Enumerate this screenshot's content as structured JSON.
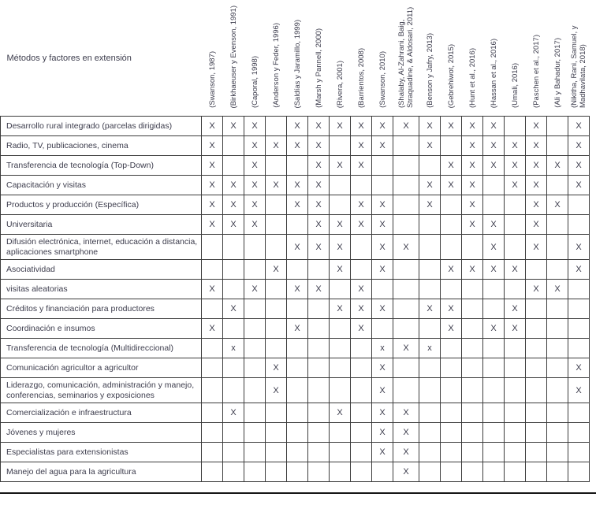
{
  "table": {
    "corner_header": "Métodos y factores en extensión",
    "columns": [
      "(Swanson, 1987)",
      "(Birkhaeuser y Evenson, 1991)",
      "(Caporal, 1998)",
      "(Anderson y Feder, 1996)",
      "(Saldías y Jaramillo, 1999)",
      "(Marsh y Pannell, 2000)",
      "(Rivera, 2001)",
      "(Barrientos, 2008)",
      "(Swanson, 2010)",
      "(Shalaby, Al-Zahrani, Baig, Straquadine, & Aldosari, 2011)",
      "(Benson y Jafry, 2013)",
      "(Gebrehiwot, 2015)",
      "(Hunt et al., 2016)",
      "(Hassan et al., 2016)",
      "(Umali, 2016)",
      "(Paschen et al., 2017)",
      "(Ali y Bahadur, 2017)",
      "(Nikitha, Rani, Samuel, y Madhavilata, 2018)"
    ],
    "rows": [
      {
        "label": "Desarrollo rural integrado (parcelas dirigidas)",
        "cells": [
          "X",
          "X",
          "X",
          "",
          "X",
          "X",
          "X",
          "X",
          "X",
          "X",
          "X",
          "X",
          "X",
          "X",
          "",
          "X",
          "",
          "X"
        ]
      },
      {
        "label": "Radio, TV, publicaciones, cinema",
        "cells": [
          "X",
          "",
          "X",
          "X",
          "X",
          "X",
          "",
          "X",
          "X",
          "",
          "X",
          "",
          "X",
          "X",
          "X",
          "X",
          "",
          "X"
        ]
      },
      {
        "label": "Transferencia de tecnología (Top-Down)",
        "cells": [
          "X",
          "",
          "X",
          "",
          "",
          "X",
          "X",
          "X",
          "",
          "",
          "",
          "X",
          "X",
          "X",
          "X",
          "X",
          "X",
          "X"
        ]
      },
      {
        "label": "Capacitación y visitas",
        "cells": [
          "X",
          "X",
          "X",
          "X",
          "X",
          "X",
          "",
          "",
          "",
          "",
          "X",
          "X",
          "X",
          "",
          "X",
          "X",
          "",
          "X"
        ]
      },
      {
        "label": "Productos y producción (Específica)",
        "cells": [
          "X",
          "X",
          "X",
          "",
          "X",
          "X",
          "",
          "X",
          "X",
          "",
          "X",
          "",
          "X",
          "",
          "",
          "X",
          "X",
          ""
        ]
      },
      {
        "label": "Universitaria",
        "cells": [
          "X",
          "X",
          "X",
          "",
          "",
          "X",
          "X",
          "X",
          "X",
          "",
          "",
          "",
          "X",
          "X",
          "",
          "X",
          "",
          ""
        ]
      },
      {
        "label": "Difusión electrónica, internet, educación a distancia, aplicaciones smartphone",
        "cells": [
          "",
          "",
          "",
          "",
          "X",
          "X",
          "X",
          "",
          "X",
          "X",
          "",
          "",
          "",
          "X",
          "",
          "X",
          "",
          "X"
        ]
      },
      {
        "label": "Asociatividad",
        "cells": [
          "",
          "",
          "",
          "X",
          "",
          "",
          "X",
          "",
          "X",
          "",
          "",
          "X",
          "X",
          "X",
          "X",
          "",
          "",
          "X"
        ]
      },
      {
        "label": "visitas aleatorias",
        "cells": [
          "X",
          "",
          "X",
          "",
          "X",
          "X",
          "",
          "X",
          "",
          "",
          "",
          "",
          "",
          "",
          "",
          "X",
          "X",
          ""
        ]
      },
      {
        "label": "Créditos y financiación para productores",
        "cells": [
          "",
          "X",
          "",
          "",
          "",
          "",
          "X",
          "X",
          "X",
          "",
          "X",
          "X",
          "",
          "",
          "X",
          "",
          "",
          ""
        ]
      },
      {
        "label": "Coordinación e insumos",
        "cells": [
          "X",
          "",
          "",
          "",
          "X",
          "",
          "",
          "X",
          "",
          "",
          "",
          "X",
          "",
          "X",
          "X",
          "",
          "",
          ""
        ]
      },
      {
        "label": "Transferencia de tecnología (Multidireccional)",
        "cells": [
          "",
          "x",
          "",
          "",
          "",
          "",
          "",
          "",
          "x",
          "X",
          "x",
          "",
          "",
          "",
          "",
          "",
          "",
          ""
        ]
      },
      {
        "label": "Comunicación agricultor a agricultor",
        "cells": [
          "",
          "",
          "",
          "X",
          "",
          "",
          "",
          "",
          "X",
          "",
          "",
          "",
          "",
          "",
          "",
          "",
          "",
          "X"
        ]
      },
      {
        "label": "Liderazgo, comunicación, administración y manejo, conferencias, seminarios y exposiciones",
        "cells": [
          "",
          "",
          "",
          "X",
          "",
          "",
          "",
          "",
          "X",
          "",
          "",
          "",
          "",
          "",
          "",
          "",
          "",
          "X"
        ]
      },
      {
        "label": "Comercialización e infraestructura",
        "cells": [
          "",
          "X",
          "",
          "",
          "",
          "",
          "X",
          "",
          "X",
          "X",
          "",
          "",
          "",
          "",
          "",
          "",
          "",
          ""
        ]
      },
      {
        "label": "Jóvenes y mujeres",
        "cells": [
          "",
          "",
          "",
          "",
          "",
          "",
          "",
          "",
          "X",
          "X",
          "",
          "",
          "",
          "",
          "",
          "",
          "",
          ""
        ]
      },
      {
        "label": "Especialistas para extensionistas",
        "cells": [
          "",
          "",
          "",
          "",
          "",
          "",
          "",
          "",
          "X",
          "X",
          "",
          "",
          "",
          "",
          "",
          "",
          "",
          ""
        ]
      },
      {
        "label": "Manejo del agua para la agricultura",
        "cells": [
          "",
          "",
          "",
          "",
          "",
          "",
          "",
          "",
          "",
          "X",
          "",
          "",
          "",
          "",
          "",
          "",
          "",
          ""
        ]
      }
    ]
  },
  "colors": {
    "text": "#3c3c4c",
    "border": "#3c3c3c",
    "bottom_rule": "#151515",
    "background": "#ffffff"
  }
}
